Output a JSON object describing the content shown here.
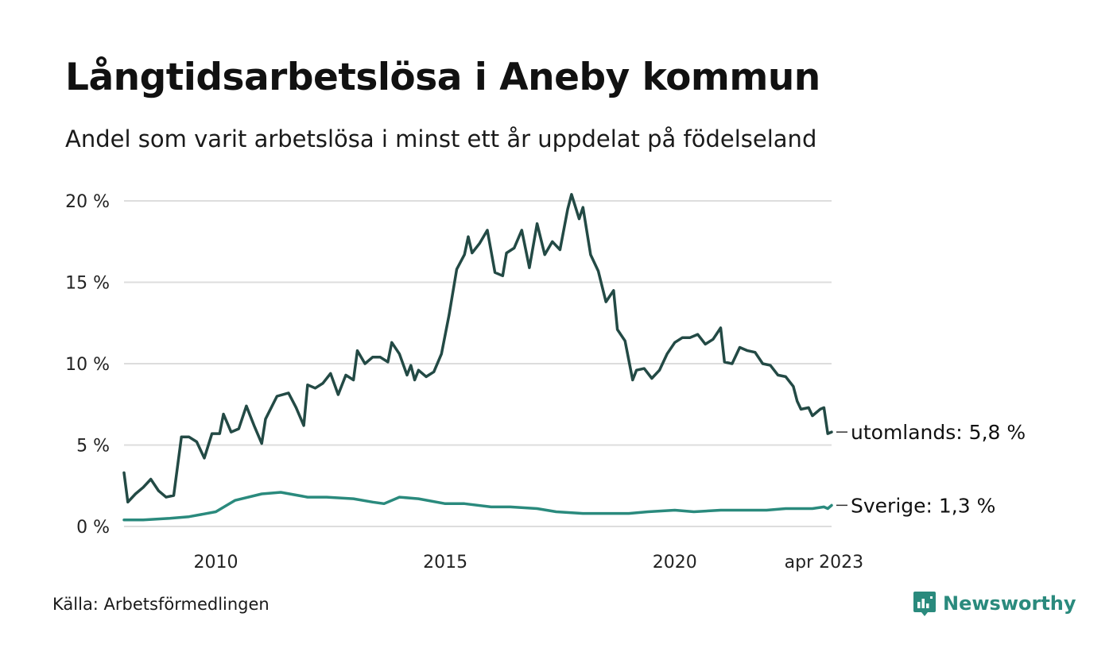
{
  "header": {
    "title": "Långtidsarbetslösa i Aneby kommun",
    "subtitle": "Andel som varit arbetslösa i minst ett år uppdelat på födelseland"
  },
  "footer": {
    "source": "Källa: Arbetsförmedlingen",
    "brand": "Newsworthy",
    "brand_icon": "newsworthy-logo-icon"
  },
  "colors": {
    "utomlands": "#234a45",
    "sverige": "#2a8a7d",
    "grid": "#dddddd",
    "brand": "#2a8a7d"
  },
  "chart_data": {
    "type": "line",
    "title": "Långtidsarbetslösa i Aneby kommun",
    "subtitle": "Andel som varit arbetslösa i minst ett år uppdelat på födelseland",
    "xlabel": "",
    "ylabel": "",
    "x_range": [
      "2008-01",
      "2023-04"
    ],
    "ylim": [
      0,
      20
    ],
    "y_ticks": [
      0,
      5,
      10,
      15,
      20
    ],
    "y_tick_labels": [
      "0 %",
      "5 %",
      "10 %",
      "15 %",
      "20 %"
    ],
    "x_ticks": [
      "2010-01",
      "2015-01",
      "2020-01",
      "2023-04"
    ],
    "x_tick_labels": [
      "2010",
      "2015",
      "2020",
      "apr 2023"
    ],
    "grid": "horizontal",
    "legend": "end-labels",
    "series": [
      {
        "name": "utomlands",
        "end_label": "utomlands: 5,8 %",
        "color": "#234a45",
        "points": [
          [
            "2008-01",
            3.3
          ],
          [
            "2008-02",
            1.5
          ],
          [
            "2008-04",
            2.0
          ],
          [
            "2008-06",
            2.4
          ],
          [
            "2008-08",
            2.9
          ],
          [
            "2008-10",
            2.2
          ],
          [
            "2008-12",
            1.8
          ],
          [
            "2009-02",
            1.9
          ],
          [
            "2009-04",
            5.5
          ],
          [
            "2009-06",
            5.5
          ],
          [
            "2009-08",
            5.2
          ],
          [
            "2009-10",
            4.2
          ],
          [
            "2009-12",
            5.7
          ],
          [
            "2010-02",
            5.7
          ],
          [
            "2010-03",
            6.9
          ],
          [
            "2010-05",
            5.8
          ],
          [
            "2010-07",
            6.0
          ],
          [
            "2010-09",
            7.4
          ],
          [
            "2010-11",
            6.2
          ],
          [
            "2011-01",
            5.1
          ],
          [
            "2011-02",
            6.6
          ],
          [
            "2011-05",
            8.0
          ],
          [
            "2011-08",
            8.2
          ],
          [
            "2011-10",
            7.3
          ],
          [
            "2011-12",
            6.2
          ],
          [
            "2012-01",
            8.7
          ],
          [
            "2012-03",
            8.5
          ],
          [
            "2012-05",
            8.8
          ],
          [
            "2012-07",
            9.4
          ],
          [
            "2012-09",
            8.1
          ],
          [
            "2012-11",
            9.3
          ],
          [
            "2013-01",
            9.0
          ],
          [
            "2013-02",
            10.8
          ],
          [
            "2013-04",
            10.0
          ],
          [
            "2013-06",
            10.4
          ],
          [
            "2013-08",
            10.4
          ],
          [
            "2013-10",
            10.1
          ],
          [
            "2013-11",
            11.3
          ],
          [
            "2014-01",
            10.6
          ],
          [
            "2014-03",
            9.3
          ],
          [
            "2014-04",
            9.9
          ],
          [
            "2014-05",
            9.0
          ],
          [
            "2014-06",
            9.6
          ],
          [
            "2014-08",
            9.2
          ],
          [
            "2014-10",
            9.5
          ],
          [
            "2014-12",
            10.6
          ],
          [
            "2015-02",
            13.0
          ],
          [
            "2015-04",
            15.8
          ],
          [
            "2015-06",
            16.7
          ],
          [
            "2015-07",
            17.8
          ],
          [
            "2015-08",
            16.8
          ],
          [
            "2015-10",
            17.4
          ],
          [
            "2015-12",
            18.2
          ],
          [
            "2016-02",
            15.6
          ],
          [
            "2016-04",
            15.4
          ],
          [
            "2016-05",
            16.8
          ],
          [
            "2016-07",
            17.1
          ],
          [
            "2016-09",
            18.2
          ],
          [
            "2016-11",
            15.9
          ],
          [
            "2017-01",
            18.6
          ],
          [
            "2017-03",
            16.7
          ],
          [
            "2017-05",
            17.5
          ],
          [
            "2017-07",
            17.0
          ],
          [
            "2017-09",
            19.5
          ],
          [
            "2017-10",
            20.4
          ],
          [
            "2017-12",
            18.9
          ],
          [
            "2018-01",
            19.6
          ],
          [
            "2018-03",
            16.7
          ],
          [
            "2018-05",
            15.7
          ],
          [
            "2018-07",
            13.8
          ],
          [
            "2018-09",
            14.5
          ],
          [
            "2018-10",
            12.1
          ],
          [
            "2018-12",
            11.4
          ],
          [
            "2019-02",
            9.0
          ],
          [
            "2019-03",
            9.6
          ],
          [
            "2019-05",
            9.7
          ],
          [
            "2019-07",
            9.1
          ],
          [
            "2019-09",
            9.6
          ],
          [
            "2019-11",
            10.6
          ],
          [
            "2020-01",
            11.3
          ],
          [
            "2020-03",
            11.6
          ],
          [
            "2020-05",
            11.6
          ],
          [
            "2020-07",
            11.8
          ],
          [
            "2020-09",
            11.2
          ],
          [
            "2020-11",
            11.5
          ],
          [
            "2021-01",
            12.2
          ],
          [
            "2021-02",
            10.1
          ],
          [
            "2021-04",
            10.0
          ],
          [
            "2021-06",
            11.0
          ],
          [
            "2021-08",
            10.8
          ],
          [
            "2021-10",
            10.7
          ],
          [
            "2021-12",
            10.0
          ],
          [
            "2022-02",
            9.9
          ],
          [
            "2022-04",
            9.3
          ],
          [
            "2022-06",
            9.2
          ],
          [
            "2022-08",
            8.6
          ],
          [
            "2022-09",
            7.7
          ],
          [
            "2022-10",
            7.2
          ],
          [
            "2022-12",
            7.3
          ],
          [
            "2023-01",
            6.8
          ],
          [
            "2023-02",
            7.0
          ],
          [
            "2023-03",
            7.2
          ],
          [
            "2023-04",
            7.3
          ],
          [
            "2023-05",
            5.7
          ],
          [
            "2023-06",
            5.8
          ]
        ]
      },
      {
        "name": "Sverige",
        "end_label": "Sverige: 1,3 %",
        "color": "#2a8a7d",
        "points": [
          [
            "2008-01",
            0.4
          ],
          [
            "2008-06",
            0.4
          ],
          [
            "2009-01",
            0.5
          ],
          [
            "2009-06",
            0.6
          ],
          [
            "2010-01",
            0.9
          ],
          [
            "2010-06",
            1.6
          ],
          [
            "2011-01",
            2.0
          ],
          [
            "2011-06",
            2.1
          ],
          [
            "2012-01",
            1.8
          ],
          [
            "2012-06",
            1.8
          ],
          [
            "2013-01",
            1.7
          ],
          [
            "2013-06",
            1.5
          ],
          [
            "2013-09",
            1.4
          ],
          [
            "2014-01",
            1.8
          ],
          [
            "2014-06",
            1.7
          ],
          [
            "2015-01",
            1.4
          ],
          [
            "2015-06",
            1.4
          ],
          [
            "2016-01",
            1.2
          ],
          [
            "2016-06",
            1.2
          ],
          [
            "2017-01",
            1.1
          ],
          [
            "2017-06",
            0.9
          ],
          [
            "2018-01",
            0.8
          ],
          [
            "2018-06",
            0.8
          ],
          [
            "2019-01",
            0.8
          ],
          [
            "2019-06",
            0.9
          ],
          [
            "2020-01",
            1.0
          ],
          [
            "2020-06",
            0.9
          ],
          [
            "2021-01",
            1.0
          ],
          [
            "2021-06",
            1.0
          ],
          [
            "2022-01",
            1.0
          ],
          [
            "2022-06",
            1.1
          ],
          [
            "2023-01",
            1.1
          ],
          [
            "2023-04",
            1.2
          ],
          [
            "2023-05",
            1.1
          ],
          [
            "2023-06",
            1.3
          ]
        ]
      }
    ]
  }
}
